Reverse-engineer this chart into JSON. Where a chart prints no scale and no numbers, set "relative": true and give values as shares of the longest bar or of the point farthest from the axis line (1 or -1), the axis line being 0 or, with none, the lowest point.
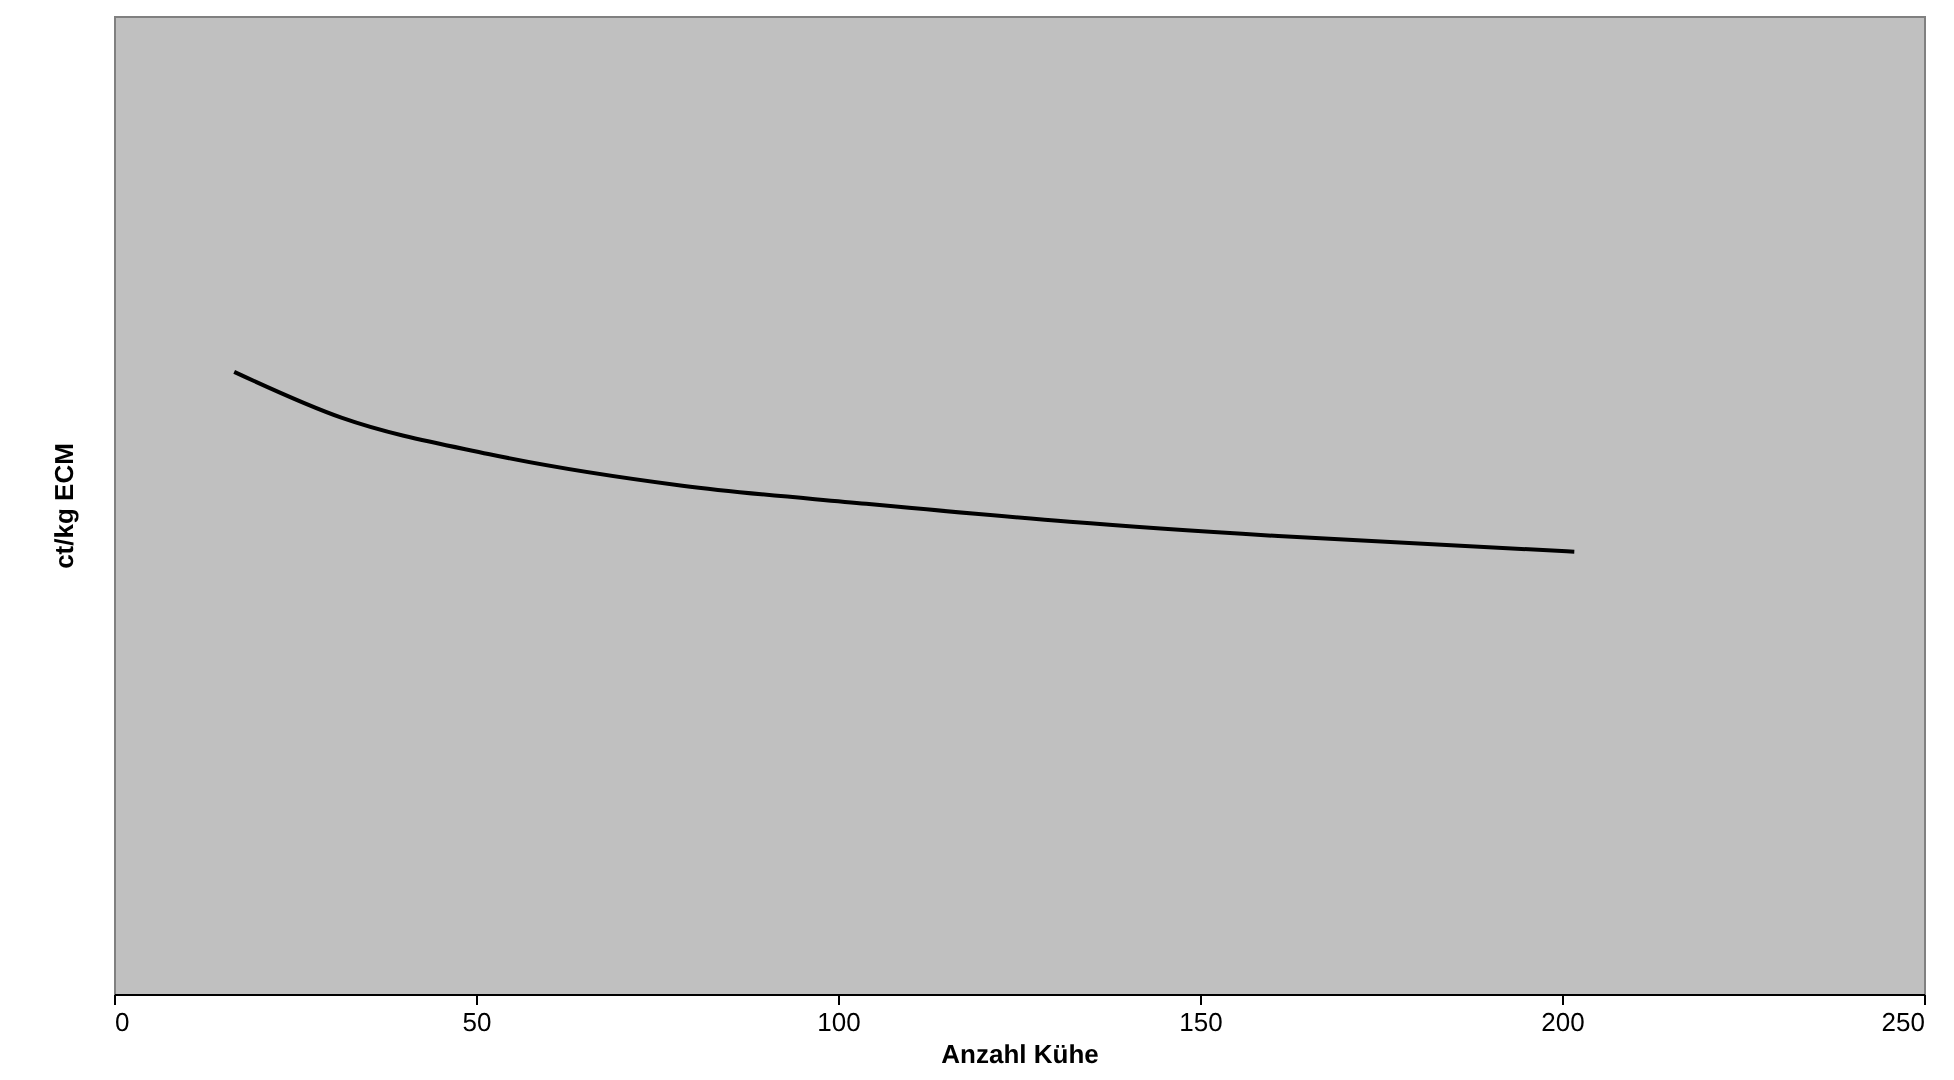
{
  "chart_data": {
    "type": "line",
    "xlabel": "Anzahl Kühe",
    "ylabel": "ct/kg ECM",
    "relative": true,
    "x": [
      16.6,
      31.5,
      51.7,
      78.5,
      103.9,
      132,
      160.8,
      201.7
    ],
    "series": [
      {
        "color": "#000000",
        "values": [
          1,
          0.926,
          0.868,
          0.817,
          0.788,
          0.759,
          0.736,
          0.711
        ]
      }
    ],
    "xlim": [
      0,
      250
    ],
    "xticks": [
      0,
      50,
      100,
      150,
      200,
      250
    ],
    "grid": false,
    "line_style": "solid"
  }
}
